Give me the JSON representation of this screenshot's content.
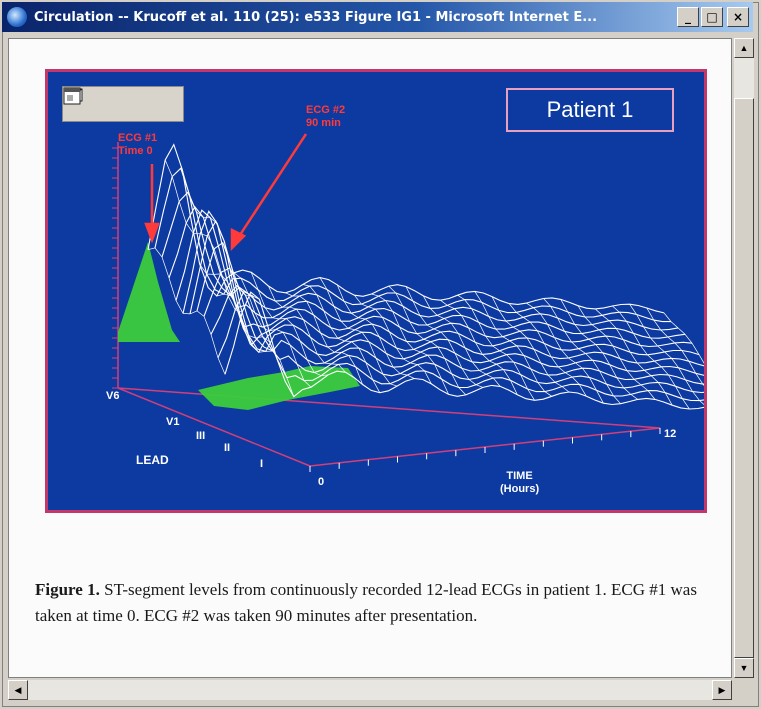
{
  "window": {
    "title": "Circulation -- Krucoff et al. 110 (25): e533 Figure IG1 - Microsoft Internet E..."
  },
  "title_buttons": {
    "minimize": "_",
    "maximize": "□",
    "close": "×"
  },
  "figure": {
    "patient_label": "Patient 1",
    "ecg1_label_line1": "ECG #1",
    "ecg1_label_line2": "Time 0",
    "ecg2_label_line1": "ECG #2",
    "ecg2_label_line2": "90 min",
    "lead_axis_label": "LEAD",
    "time_axis_label_line1": "TIME",
    "time_axis_label_line2": "(Hours)",
    "time_tick_start": "0",
    "time_tick_end": "12",
    "lead_tick_top": "V6",
    "lead_tick_2": "V1",
    "lead_tick_3": "III",
    "lead_tick_4": "II",
    "lead_tick_5": "I",
    "toolbar_icons": [
      "save-icon",
      "print-icon",
      "email-icon",
      "window-icon"
    ],
    "colors": {
      "background": "#0d3aa0",
      "frame": "#c2386a",
      "surface": "#ffffff",
      "surface_highlight": "#3ccc3c",
      "arrow": "#ff3a3a"
    }
  },
  "caption": {
    "label": "Figure 1.",
    "text": " ST-segment levels from continuously recorded 12-lead ECGs in patient 1. ECG #1 was taken at time 0. ECG #2 was taken 90 minutes after presentation."
  }
}
